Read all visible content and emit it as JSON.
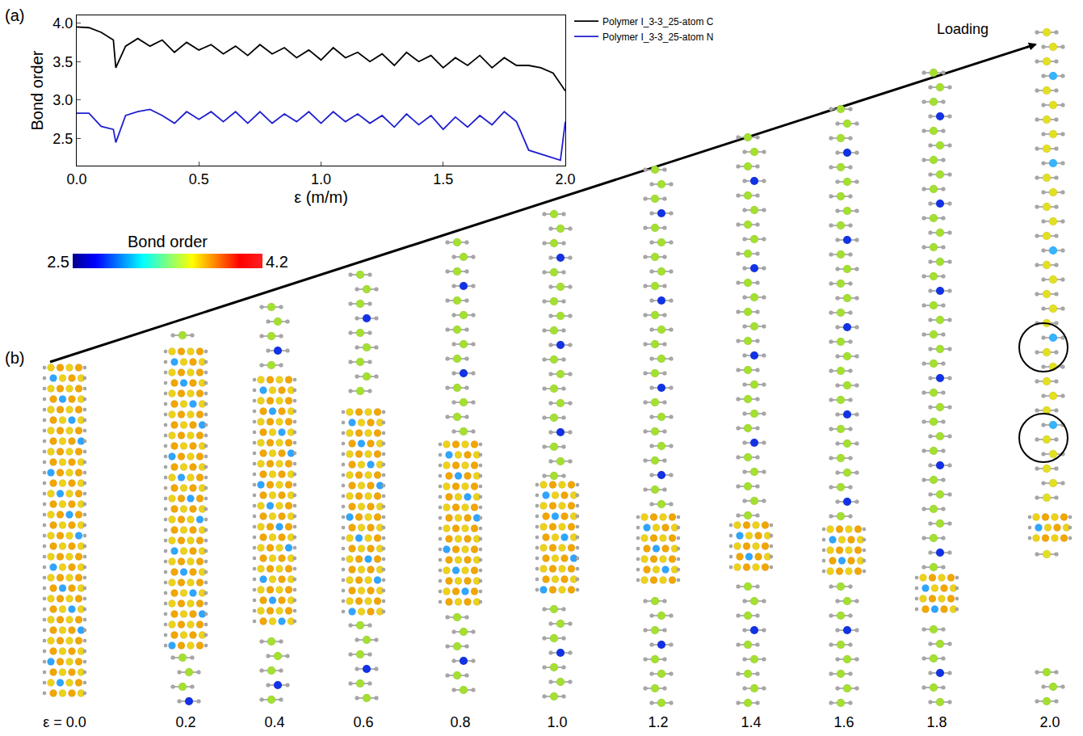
{
  "chart_data": {
    "type": "line",
    "x_label": "ε (m/m)",
    "y_label": "Bond order",
    "xlim": [
      0,
      2.0
    ],
    "xticks": [
      {
        "value": 0,
        "label": "0.0"
      },
      {
        "value": 0.5,
        "label": "0.5"
      },
      {
        "value": 1,
        "label": "1.0"
      },
      {
        "value": 1.5,
        "label": "1.5"
      },
      {
        "value": 2,
        "label": "2.0"
      }
    ],
    "ylim": [
      2.15,
      4.1
    ],
    "yticks": [
      2.5,
      {
        "value": 3,
        "label": "3.0"
      },
      3.5,
      {
        "value": 4,
        "label": "4.0"
      }
    ],
    "legend": "right",
    "x": [
      0,
      0.05,
      0.1,
      0.15,
      0.16,
      0.2,
      0.25,
      0.3,
      0.35,
      0.4,
      0.45,
      0.5,
      0.55,
      0.6,
      0.65,
      0.7,
      0.75,
      0.8,
      0.85,
      0.9,
      0.95,
      1.0,
      1.05,
      1.1,
      1.15,
      1.2,
      1.25,
      1.3,
      1.35,
      1.4,
      1.45,
      1.5,
      1.55,
      1.6,
      1.65,
      1.7,
      1.75,
      1.8,
      1.85,
      1.9,
      1.95,
      1.98,
      2.0
    ],
    "series": [
      {
        "name": "Polymer I_3-3_25-atom C",
        "color": "#000000",
        "values": [
          3.95,
          3.94,
          3.88,
          3.78,
          3.42,
          3.7,
          3.8,
          3.7,
          3.78,
          3.62,
          3.75,
          3.65,
          3.72,
          3.6,
          3.7,
          3.58,
          3.72,
          3.6,
          3.68,
          3.55,
          3.65,
          3.52,
          3.68,
          3.55,
          3.62,
          3.5,
          3.6,
          3.45,
          3.62,
          3.5,
          3.58,
          3.42,
          3.55,
          3.45,
          3.58,
          3.42,
          3.55,
          3.45,
          3.45,
          3.42,
          3.35,
          3.22,
          3.12
        ]
      },
      {
        "name": "Polymer I_3-3_25-atom N",
        "color": "#1f1fd0",
        "values": [
          2.83,
          2.83,
          2.66,
          2.62,
          2.45,
          2.8,
          2.85,
          2.88,
          2.8,
          2.7,
          2.85,
          2.75,
          2.85,
          2.72,
          2.85,
          2.7,
          2.85,
          2.7,
          2.82,
          2.72,
          2.85,
          2.7,
          2.85,
          2.72,
          2.82,
          2.7,
          2.8,
          2.65,
          2.82,
          2.68,
          2.8,
          2.62,
          2.78,
          2.65,
          2.8,
          2.68,
          2.85,
          2.72,
          2.35,
          2.3,
          2.25,
          2.22,
          2.72
        ]
      }
    ]
  },
  "panels": {
    "a": "(a)",
    "b": "(b)"
  },
  "loading_label": "Loading",
  "colorbar": {
    "title": "Bond order",
    "range": [
      2.5,
      4.2
    ],
    "ticks": [
      2.5,
      4.2
    ]
  },
  "snapshots": [
    "ε = 0.0",
    "0.2",
    "0.4",
    "0.6",
    "0.8",
    "1.0",
    "1.2",
    "1.4",
    "1.6",
    "1.8",
    "2.0"
  ]
}
